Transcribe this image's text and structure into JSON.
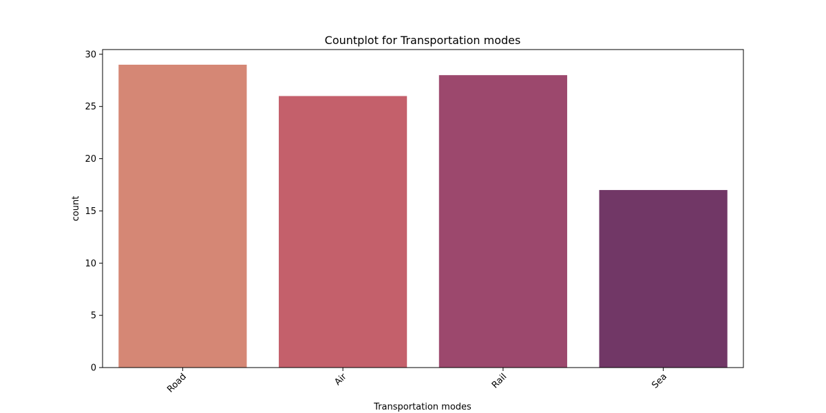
{
  "chart_data": {
    "type": "bar",
    "title": "Countplot for Transportation modes",
    "xlabel": "Transportation modes",
    "ylabel": "count",
    "categories": [
      "Road",
      "Air",
      "Rail",
      "Sea"
    ],
    "values": [
      29,
      26,
      28,
      17
    ],
    "colors": [
      "#d58775",
      "#c4606b",
      "#9c486d",
      "#713766"
    ],
    "ylim": [
      0,
      30.45
    ],
    "yticks": [
      0,
      5,
      10,
      15,
      20,
      25,
      30
    ],
    "ytick_labels": [
      "0",
      "5",
      "10",
      "15",
      "20",
      "25",
      "30"
    ],
    "xtick_rotation": 45,
    "grid": false,
    "legend": "none"
  }
}
